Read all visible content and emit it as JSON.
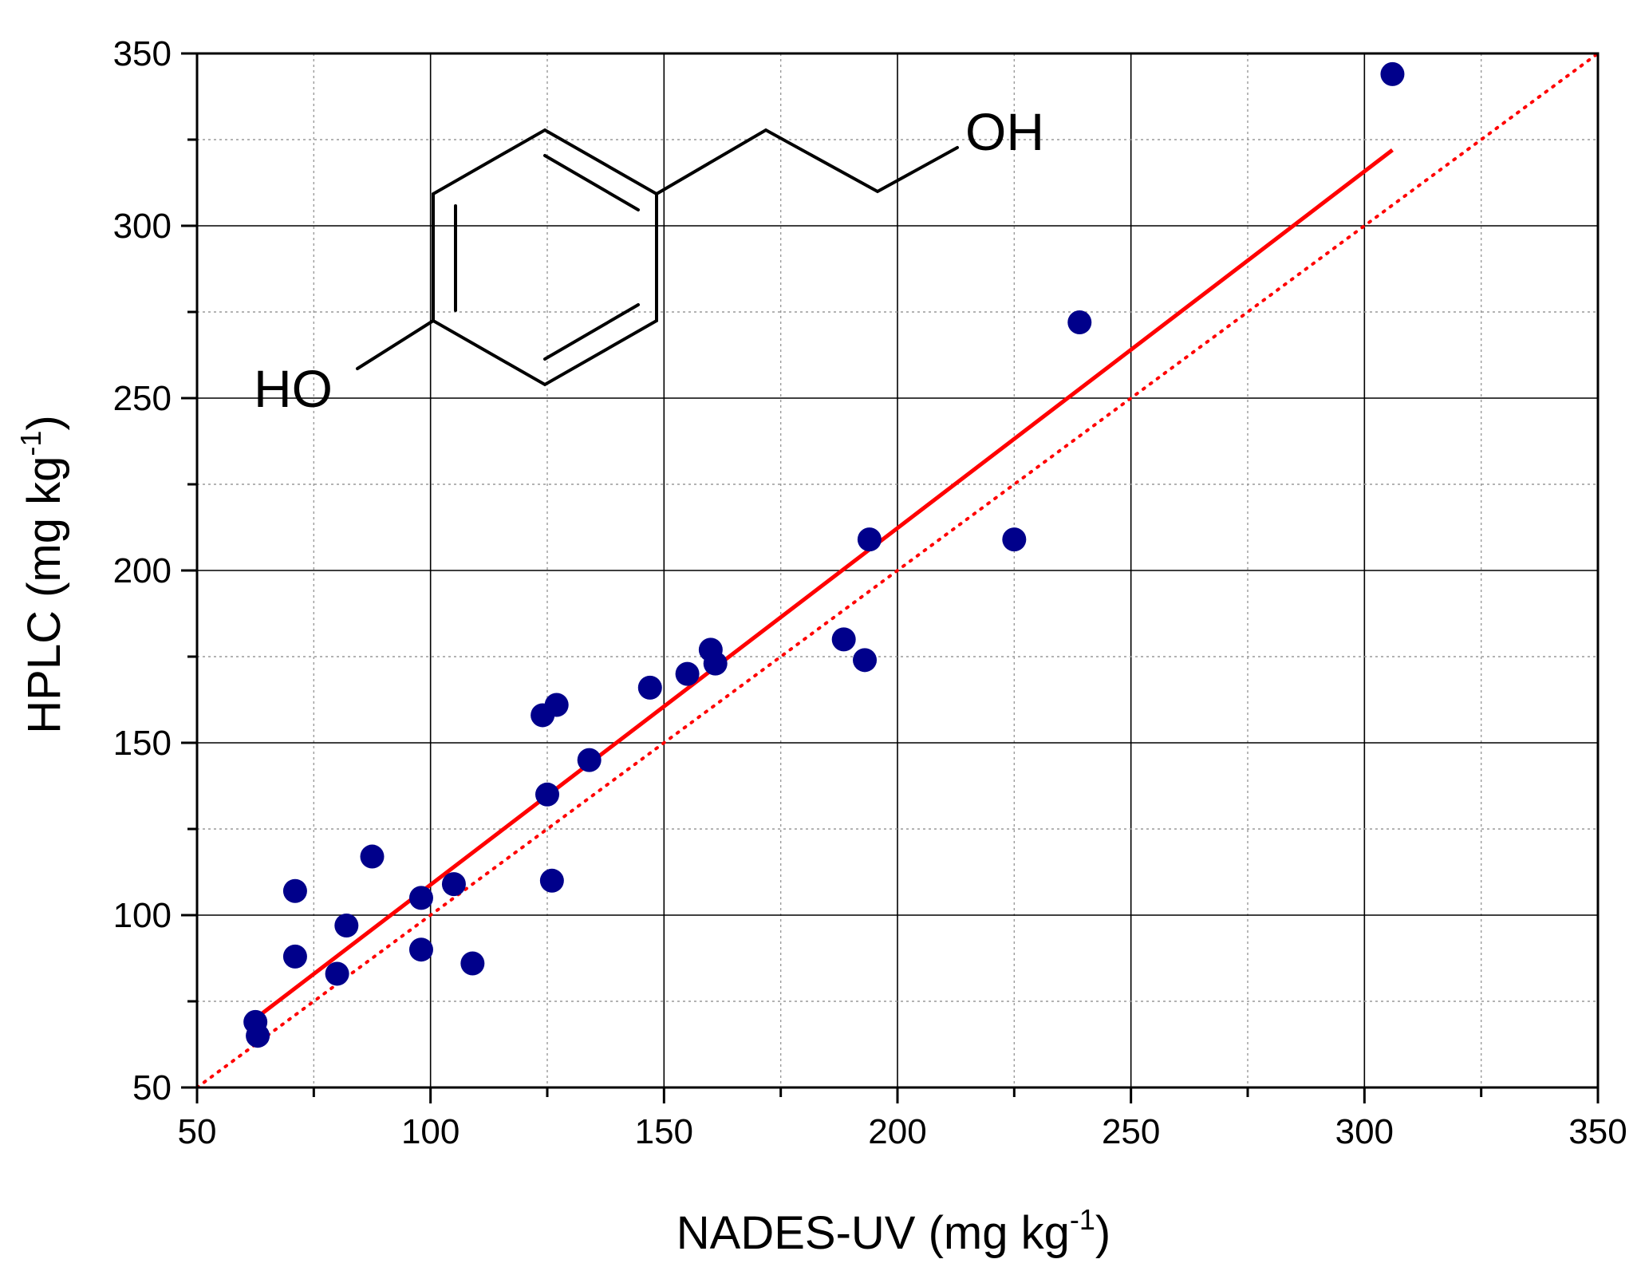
{
  "chart_data": {
    "type": "scatter",
    "xlabel": "NADES-UV (mg kg",
    "xlabel_sup": "-1",
    "xlabel_end": ")",
    "ylabel": "HPLC (mg kg",
    "ylabel_sup": "-1",
    "ylabel_end": ")",
    "xlim": [
      50,
      350
    ],
    "ylim": [
      50,
      350
    ],
    "x_ticks": [
      "50",
      "100",
      "150",
      "200",
      "250",
      "300",
      "350"
    ],
    "y_ticks": [
      "50",
      "100",
      "150",
      "200",
      "250",
      "300",
      "350"
    ],
    "grid": true,
    "point_color": "#00008b",
    "line_color": "#ff0000",
    "points": [
      {
        "x": 62.5,
        "y": 69
      },
      {
        "x": 63,
        "y": 65
      },
      {
        "x": 71,
        "y": 107
      },
      {
        "x": 71,
        "y": 88
      },
      {
        "x": 80,
        "y": 83
      },
      {
        "x": 82,
        "y": 97
      },
      {
        "x": 87.5,
        "y": 117
      },
      {
        "x": 98,
        "y": 105
      },
      {
        "x": 98,
        "y": 90
      },
      {
        "x": 105,
        "y": 109
      },
      {
        "x": 109,
        "y": 86
      },
      {
        "x": 124,
        "y": 158
      },
      {
        "x": 125,
        "y": 135
      },
      {
        "x": 126,
        "y": 110
      },
      {
        "x": 127,
        "y": 161
      },
      {
        "x": 134,
        "y": 145
      },
      {
        "x": 147,
        "y": 166
      },
      {
        "x": 155,
        "y": 170
      },
      {
        "x": 160,
        "y": 177
      },
      {
        "x": 161,
        "y": 173
      },
      {
        "x": 188.5,
        "y": 180
      },
      {
        "x": 193,
        "y": 174
      },
      {
        "x": 194,
        "y": 209
      },
      {
        "x": 225,
        "y": 209
      },
      {
        "x": 239,
        "y": 272
      },
      {
        "x": 306,
        "y": 344
      }
    ],
    "fit_line": {
      "x": [
        62.5,
        306
      ],
      "y": [
        70,
        322
      ]
    },
    "identity_line": {
      "x": [
        50,
        350
      ],
      "y": [
        50,
        350
      ]
    }
  },
  "molecule": {
    "label_oh": "OH",
    "label_ho": "HO"
  }
}
